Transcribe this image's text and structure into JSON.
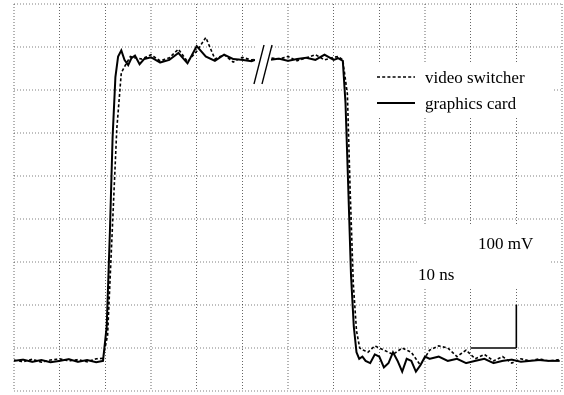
{
  "chart_data": {
    "type": "line",
    "title": "",
    "xlabel": "",
    "ylabel": "",
    "grid": true,
    "grid_divisions": {
      "x": 12,
      "y": 9
    },
    "legend_position": "top-right",
    "x_unit": "ns",
    "y_unit": "mV",
    "x_scale_label": "10 ns",
    "y_scale_label": "100 mV",
    "x_per_division": 10,
    "y_per_division": 100,
    "xlim": [
      0,
      120
    ],
    "ylim": [
      -70,
      830
    ],
    "axis_break_at_x": 55,
    "legend": [
      "video switcher",
      "graphics card"
    ],
    "series": [
      {
        "name": "video switcher",
        "style": "dotted",
        "x": [
          0,
          2,
          4,
          6,
          8,
          10,
          12,
          14,
          16,
          18,
          19.5,
          20.5,
          21.5,
          22.5,
          23.5,
          24.5,
          25.5,
          26.5,
          28,
          30,
          32,
          34,
          36,
          38,
          40,
          42,
          44,
          46,
          48,
          50,
          52,
          54,
          56,
          58,
          60,
          62,
          64,
          66,
          68,
          70,
          71,
          72,
          73,
          73.6,
          74.3,
          75,
          75.7,
          76.5,
          77.5,
          79,
          81,
          83,
          85,
          87,
          89,
          91,
          93,
          95,
          97,
          99,
          101,
          103,
          105,
          107,
          109,
          111,
          113,
          115,
          117,
          119.5
        ],
        "values": [
          2,
          -2,
          4,
          -3,
          2,
          5,
          0,
          3,
          -2,
          5,
          6,
          60,
          300,
          540,
          670,
          690,
          708,
          705,
          702,
          712,
          698,
          705,
          725,
          696,
          720,
          752,
          702,
          712,
          695,
          706,
          700,
          703,
          705,
          702,
          708,
          698,
          705,
          712,
          700,
          706,
          708,
          700,
          620,
          400,
          180,
          70,
          30,
          25,
          20,
          35,
          25,
          15,
          30,
          20,
          -10,
          25,
          35,
          30,
          10,
          25,
          5,
          15,
          0,
          10,
          -5,
          5,
          0,
          5,
          0,
          3
        ]
      },
      {
        "name": "graphics card",
        "style": "solid",
        "x": [
          0,
          2,
          4,
          6,
          8,
          10,
          12,
          14,
          16,
          18,
          19.5,
          20.3,
          21,
          21.6,
          22.2,
          22.8,
          23.5,
          24.2,
          25,
          25.7,
          26.5,
          27.5,
          28.5,
          30,
          32,
          34,
          36,
          38,
          40,
          42,
          44,
          46,
          48,
          50,
          52,
          54,
          56,
          58,
          60,
          62,
          64,
          66,
          68,
          70,
          71,
          72,
          72.6,
          73.2,
          73.8,
          74.4,
          75,
          75.6,
          76.3,
          77,
          78,
          79,
          80,
          81,
          82,
          83,
          84,
          85,
          86,
          87,
          88,
          89,
          90,
          91,
          93,
          95,
          97,
          99,
          101,
          103,
          105,
          107,
          109,
          111,
          113,
          115,
          117,
          119.5
        ],
        "values": [
          0,
          3,
          -2,
          2,
          -3,
          0,
          4,
          -2,
          2,
          -3,
          0,
          80,
          300,
          520,
          660,
          708,
          722,
          700,
          688,
          704,
          710,
          690,
          702,
          706,
          694,
          700,
          716,
          692,
          732,
          708,
          698,
          712,
          702,
          700,
          697,
          705,
          700,
          703,
          698,
          702,
          705,
          700,
          712,
          700,
          704,
          698,
          600,
          400,
          200,
          80,
          20,
          5,
          10,
          0,
          -5,
          15,
          10,
          -15,
          -5,
          20,
          0,
          -25,
          5,
          0,
          -25,
          -10,
          10,
          5,
          10,
          0,
          5,
          -5,
          0,
          5,
          -5,
          0,
          3,
          -2,
          0,
          2,
          0,
          0
        ]
      }
    ]
  }
}
